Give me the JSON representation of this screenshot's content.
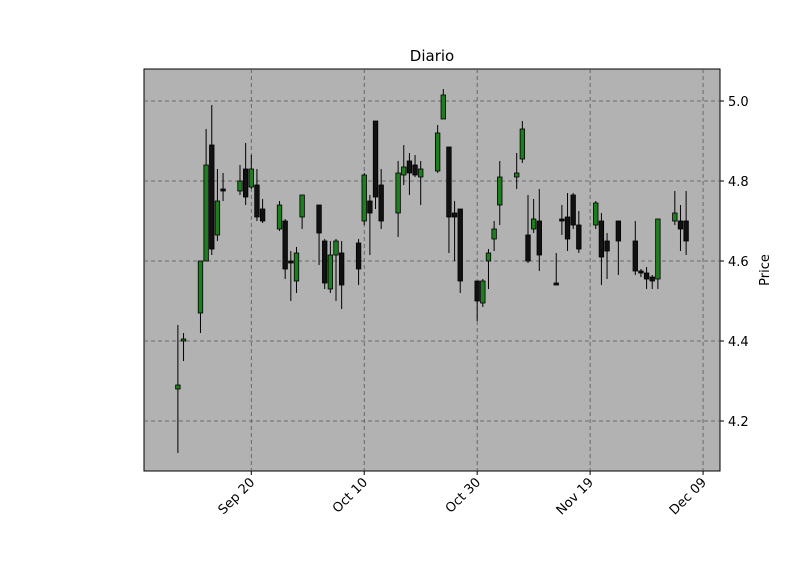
{
  "chart_data": {
    "type": "candlestick",
    "title": "Diario",
    "y_label": "Price",
    "x": [
      "Sep 07",
      "Sep 08",
      "Sep 11",
      "Sep 12",
      "Sep 13",
      "Sep 14",
      "Sep 15",
      "Sep 18",
      "Sep 19",
      "Sep 20",
      "Sep 21",
      "Sep 22",
      "Sep 25",
      "Sep 26",
      "Sep 27",
      "Sep 28",
      "Sep 29",
      "Oct 02",
      "Oct 03",
      "Oct 04",
      "Oct 05",
      "Oct 06",
      "Oct 09",
      "Oct 10",
      "Oct 11",
      "Oct 12",
      "Oct 13",
      "Oct 16",
      "Oct 17",
      "Oct 18",
      "Oct 19",
      "Oct 20",
      "Oct 23",
      "Oct 24",
      "Oct 25",
      "Oct 26",
      "Oct 27",
      "Oct 30",
      "Oct 31",
      "Nov 01",
      "Nov 02",
      "Nov 03",
      "Nov 06",
      "Nov 07",
      "Nov 08",
      "Nov 09",
      "Nov 10",
      "Nov 13",
      "Nov 14",
      "Nov 15",
      "Nov 16",
      "Nov 17",
      "Nov 20",
      "Nov 21",
      "Nov 22",
      "Nov 24",
      "Nov 27",
      "Nov 28",
      "Nov 29",
      "Nov 30",
      "Dec 01",
      "Dec 04",
      "Dec 05",
      "Dec 06"
    ],
    "open": [
      4.28,
      4.4,
      4.47,
      4.6,
      4.89,
      4.665,
      4.78,
      4.775,
      4.83,
      4.785,
      4.79,
      4.73,
      4.68,
      4.7,
      4.6,
      4.55,
      4.71,
      4.74,
      4.65,
      4.53,
      4.615,
      4.62,
      4.645,
      4.7,
      4.75,
      4.95,
      4.79,
      4.72,
      4.815,
      4.85,
      4.84,
      4.81,
      4.825,
      4.955,
      4.885,
      4.72,
      4.73,
      4.55,
      4.495,
      4.6,
      4.655,
      4.74,
      4.81,
      4.855,
      4.665,
      4.68,
      4.7,
      4.545,
      4.705,
      4.71,
      4.765,
      4.69,
      4.69,
      4.7,
      4.65,
      4.7,
      4.65,
      4.575,
      4.57,
      4.56,
      4.555,
      4.7,
      4.7,
      4.7
    ],
    "high": [
      4.44,
      4.42,
      4.6,
      4.93,
      4.99,
      4.83,
      4.82,
      4.84,
      4.895,
      4.865,
      4.83,
      4.755,
      4.75,
      4.705,
      4.625,
      4.635,
      4.765,
      4.74,
      4.655,
      4.65,
      4.655,
      4.65,
      4.655,
      4.82,
      4.765,
      4.95,
      4.83,
      4.85,
      4.89,
      4.87,
      4.865,
      4.85,
      4.94,
      5.03,
      4.885,
      4.75,
      4.73,
      4.55,
      4.555,
      4.63,
      4.7,
      4.85,
      4.87,
      4.95,
      4.765,
      4.755,
      4.78,
      4.62,
      4.74,
      4.77,
      4.77,
      4.725,
      4.75,
      4.72,
      4.67,
      4.7,
      4.7,
      4.58,
      4.585,
      4.565,
      4.705,
      4.775,
      4.74,
      4.775
    ],
    "low": [
      4.12,
      4.35,
      4.42,
      4.6,
      4.615,
      4.65,
      4.75,
      4.765,
      4.74,
      4.78,
      4.7,
      4.695,
      4.675,
      4.555,
      4.5,
      4.52,
      4.68,
      4.59,
      4.53,
      4.52,
      4.5,
      4.48,
      4.54,
      4.69,
      4.615,
      4.73,
      4.68,
      4.66,
      4.79,
      4.765,
      4.81,
      4.74,
      4.82,
      4.955,
      4.62,
      4.6,
      4.52,
      4.45,
      4.485,
      4.53,
      4.625,
      4.69,
      4.78,
      4.845,
      4.595,
      4.67,
      4.575,
      4.54,
      4.665,
      4.625,
      4.68,
      4.62,
      4.68,
      4.54,
      4.555,
      4.565,
      4.565,
      4.56,
      4.53,
      4.53,
      4.53,
      4.69,
      4.625,
      4.615
    ],
    "close": [
      4.29,
      4.405,
      4.6,
      4.84,
      4.63,
      4.75,
      4.775,
      4.8,
      4.76,
      4.83,
      4.71,
      4.7,
      4.74,
      4.58,
      4.595,
      4.62,
      4.765,
      4.67,
      4.545,
      4.615,
      4.65,
      4.54,
      4.58,
      4.815,
      4.72,
      4.76,
      4.7,
      4.82,
      4.835,
      4.82,
      4.815,
      4.83,
      4.92,
      5.015,
      4.71,
      4.71,
      4.55,
      4.5,
      4.55,
      4.62,
      4.68,
      4.81,
      4.82,
      4.93,
      4.6,
      4.705,
      4.615,
      4.54,
      4.7,
      4.655,
      4.69,
      4.63,
      4.745,
      4.61,
      4.625,
      4.65,
      4.575,
      4.57,
      4.555,
      4.55,
      4.705,
      4.72,
      4.68,
      4.65
    ],
    "up_color": "#1e7d1e",
    "down_color": "#111111",
    "xlim": [
      "Sep 01",
      "Dec 12"
    ],
    "xticks": [
      "Sep 20",
      "Oct 10",
      "Oct 30",
      "Nov 19",
      "Dec 09"
    ],
    "ylim": [
      4.075,
      5.08
    ],
    "yticks": [
      4.2,
      4.4,
      4.6,
      4.8,
      {
        "value": 5,
        "label": "5.0"
      }
    ],
    "grid": true
  }
}
